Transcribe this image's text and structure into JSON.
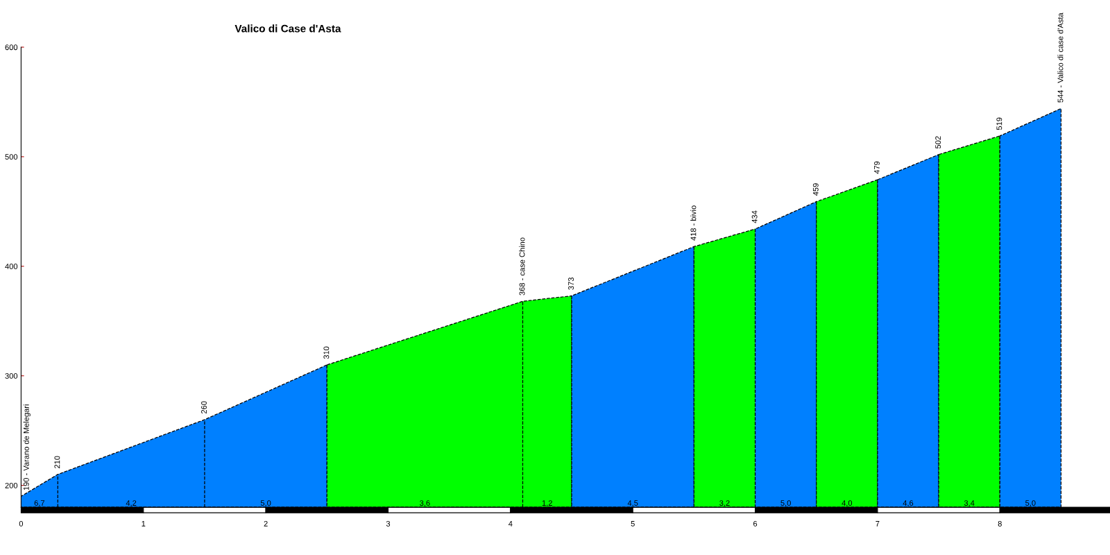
{
  "chart_data": {
    "type": "area",
    "title": "Valico di Case d'Asta",
    "xlim": [
      0,
      8.9
    ],
    "xticks": [
      0,
      1,
      2,
      3,
      4,
      5,
      6,
      7,
      8
    ],
    "ylim": [
      180,
      600
    ],
    "yticks": [
      200,
      300,
      400,
      500,
      600
    ],
    "grid": false,
    "line_style": "dashed",
    "series": [
      {
        "color": "#0080ff",
        "x": [
          0,
          0.3,
          1.5,
          2.5
        ],
        "values": [
          190,
          210,
          260,
          310
        ]
      },
      {
        "color": "#00ff00",
        "x": [
          2.5,
          4.1,
          4.5
        ],
        "values": [
          310,
          368,
          373
        ]
      },
      {
        "color": "#0080ff",
        "x": [
          4.5,
          5.5
        ],
        "values": [
          373,
          418
        ]
      },
      {
        "color": "#00ff00",
        "x": [
          5.5,
          6.0
        ],
        "values": [
          418,
          434
        ]
      },
      {
        "color": "#0080ff",
        "x": [
          6.0,
          6.5
        ],
        "values": [
          434,
          459
        ]
      },
      {
        "color": "#00ff00",
        "x": [
          6.5,
          7.0
        ],
        "values": [
          459,
          479
        ]
      },
      {
        "color": "#0080ff",
        "x": [
          7.0,
          7.5
        ],
        "values": [
          479,
          502
        ]
      },
      {
        "color": "#00ff00",
        "x": [
          7.5,
          8.0
        ],
        "values": [
          502,
          519
        ]
      },
      {
        "color": "#0080ff",
        "x": [
          8.0,
          8.5
        ],
        "values": [
          519,
          544
        ]
      }
    ],
    "annotations": [
      {
        "text": "190 - Varano de Melegari",
        "x": 0,
        "y": 190
      },
      {
        "text": "210",
        "x": 0.3,
        "y": 210
      },
      {
        "text": "260",
        "x": 1.5,
        "y": 260
      },
      {
        "text": "310",
        "x": 2.5,
        "y": 310
      },
      {
        "text": "368 - case Chino",
        "x": 4.1,
        "y": 368
      },
      {
        "text": "373",
        "x": 4.5,
        "y": 373
      },
      {
        "text": "418 - bivio",
        "x": 5.5,
        "y": 418
      },
      {
        "text": "434",
        "x": 6.0,
        "y": 434
      },
      {
        "text": "459",
        "x": 6.5,
        "y": 459
      },
      {
        "text": "479",
        "x": 7.0,
        "y": 479
      },
      {
        "text": "502",
        "x": 7.5,
        "y": 502
      },
      {
        "text": "519",
        "x": 8.0,
        "y": 519
      },
      {
        "text": "544 - Valico di case d'Asta",
        "x": 8.5,
        "y": 544
      },
      {
        "text": "6,7",
        "x": 0.15,
        "y": 180
      },
      {
        "text": "4,2",
        "x": 0.9,
        "y": 180
      },
      {
        "text": "5,0",
        "x": 2.0,
        "y": 180
      },
      {
        "text": "3,6",
        "x": 3.3,
        "y": 180
      },
      {
        "text": "1,2",
        "x": 4.3,
        "y": 180
      },
      {
        "text": "4,5",
        "x": 5.0,
        "y": 180
      },
      {
        "text": "3,2",
        "x": 5.75,
        "y": 180
      },
      {
        "text": "5,0",
        "x": 6.25,
        "y": 180
      },
      {
        "text": "4,0",
        "x": 6.75,
        "y": 180
      },
      {
        "text": "4,6",
        "x": 7.25,
        "y": 180
      },
      {
        "text": "3,4",
        "x": 7.75,
        "y": 180
      },
      {
        "text": "5,0",
        "x": 8.25,
        "y": 180
      }
    ]
  }
}
